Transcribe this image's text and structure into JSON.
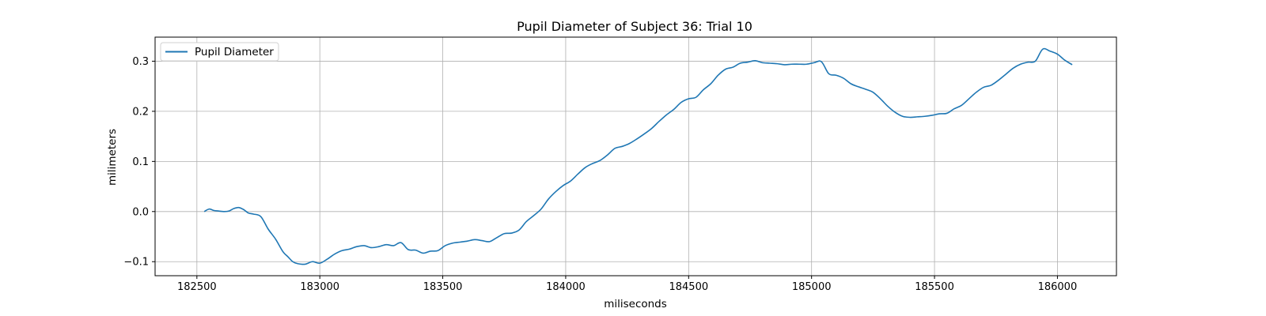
{
  "chart_data": {
    "type": "line",
    "title": "Pupil Diameter of Subject 36: Trial 10",
    "xlabel": "miliseconds",
    "ylabel": "milimeters",
    "xlim": [
      182330,
      186240
    ],
    "ylim": [
      -0.128,
      0.348
    ],
    "xticks": [
      182500,
      183000,
      183500,
      184000,
      184500,
      185000,
      185500,
      186000
    ],
    "yticks": [
      -0.1,
      0.0,
      0.1,
      0.2,
      0.3
    ],
    "grid": true,
    "legend_position": "top-left",
    "colors": {
      "series": "#1f77b4",
      "grid": "#b0b0b0",
      "axes": "#000000"
    },
    "series": [
      {
        "name": "Pupil Diameter",
        "x": [
          182530,
          182550,
          182570,
          182590,
          182610,
          182630,
          182650,
          182670,
          182690,
          182710,
          182730,
          182760,
          182790,
          182820,
          182850,
          182870,
          182890,
          182910,
          182940,
          182970,
          183000,
          183030,
          183060,
          183090,
          183120,
          183150,
          183180,
          183210,
          183240,
          183270,
          183300,
          183330,
          183360,
          183390,
          183420,
          183450,
          183480,
          183510,
          183540,
          183570,
          183600,
          183630,
          183660,
          183690,
          183720,
          183750,
          183780,
          183810,
          183840,
          183870,
          183900,
          183930,
          183960,
          183990,
          184020,
          184050,
          184080,
          184110,
          184140,
          184170,
          184200,
          184230,
          184260,
          184290,
          184320,
          184350,
          184380,
          184410,
          184440,
          184470,
          184500,
          184530,
          184560,
          184590,
          184620,
          184650,
          184680,
          184710,
          184740,
          184770,
          184800,
          184830,
          184860,
          184890,
          184920,
          184950,
          184980,
          185010,
          185040,
          185070,
          185100,
          185130,
          185160,
          185190,
          185220,
          185250,
          185280,
          185310,
          185340,
          185370,
          185400,
          185430,
          185460,
          185490,
          185520,
          185550,
          185580,
          185610,
          185640,
          185670,
          185700,
          185730,
          185760,
          185790,
          185820,
          185850,
          185880,
          185910,
          185940,
          185970,
          186000,
          186030,
          186060
        ],
        "y": [
          0.0,
          0.005,
          0.002,
          0.001,
          0.0,
          0.001,
          0.006,
          0.008,
          0.004,
          -0.003,
          -0.005,
          -0.01,
          -0.035,
          -0.055,
          -0.08,
          -0.09,
          -0.1,
          -0.104,
          -0.105,
          -0.1,
          -0.103,
          -0.095,
          -0.085,
          -0.078,
          -0.075,
          -0.07,
          -0.068,
          -0.072,
          -0.07,
          -0.066,
          -0.068,
          -0.062,
          -0.076,
          -0.077,
          -0.083,
          -0.079,
          -0.078,
          -0.068,
          -0.063,
          -0.061,
          -0.059,
          -0.056,
          -0.058,
          -0.06,
          -0.052,
          -0.044,
          -0.043,
          -0.037,
          -0.02,
          -0.008,
          0.005,
          0.025,
          0.04,
          0.052,
          0.061,
          0.075,
          0.088,
          0.096,
          0.102,
          0.113,
          0.126,
          0.13,
          0.136,
          0.145,
          0.155,
          0.166,
          0.18,
          0.193,
          0.204,
          0.218,
          0.225,
          0.228,
          0.243,
          0.255,
          0.272,
          0.284,
          0.288,
          0.296,
          0.298,
          0.301,
          0.297,
          0.296,
          0.295,
          0.293,
          0.294,
          0.294,
          0.294,
          0.297,
          0.299,
          0.275,
          0.272,
          0.266,
          0.255,
          0.249,
          0.244,
          0.238,
          0.225,
          0.21,
          0.198,
          0.19,
          0.188,
          0.189,
          0.19,
          0.192,
          0.195,
          0.196,
          0.205,
          0.212,
          0.225,
          0.238,
          0.248,
          0.252,
          0.262,
          0.274,
          0.286,
          0.294,
          0.298,
          0.3,
          0.324,
          0.32,
          0.314,
          0.302,
          0.293
        ]
      }
    ]
  }
}
